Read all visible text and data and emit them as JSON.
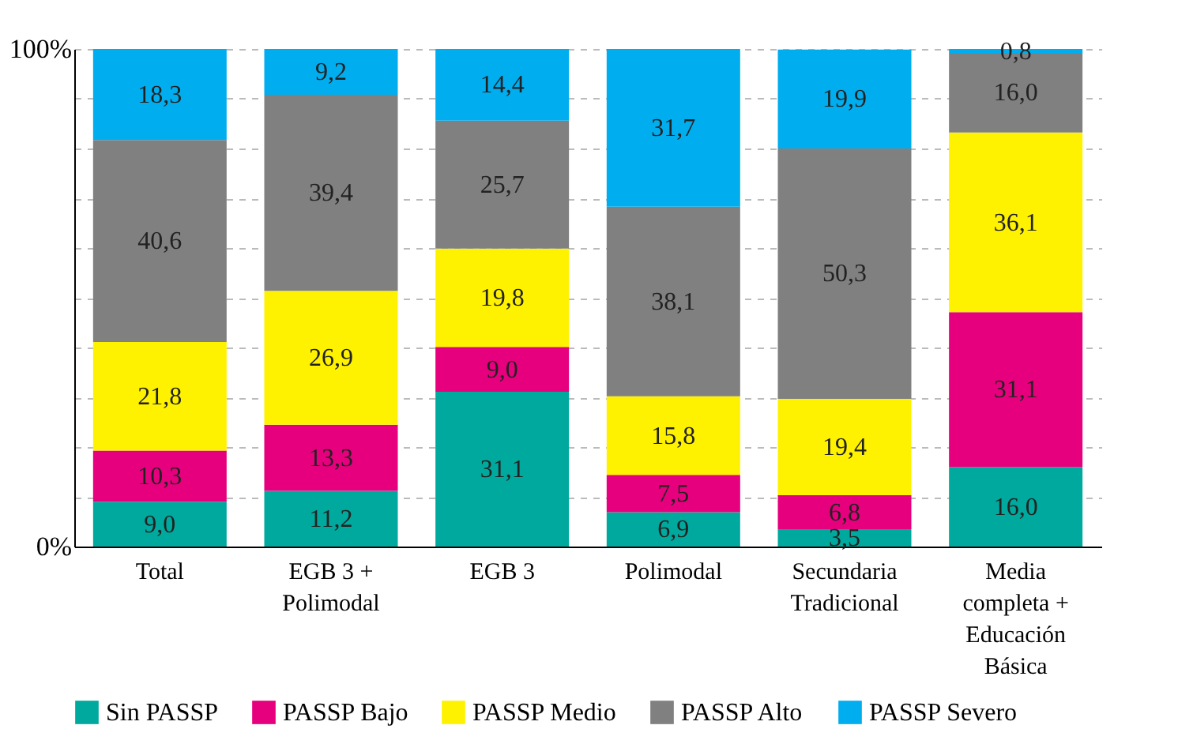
{
  "chart_data": {
    "type": "bar",
    "stacked": true,
    "categories": [
      "Total",
      "EGB 3 +\nPolimodal",
      "EGB 3",
      "Polimodal",
      "Secundaria\nTradicional",
      "Media\ncompleta +\nEducación\nBásica"
    ],
    "ylim": [
      0,
      100
    ],
    "yticks": [
      {
        "value": 0,
        "label": "0%"
      },
      {
        "value": 10,
        "label": null
      },
      {
        "value": 20,
        "label": null
      },
      {
        "value": 30,
        "label": null
      },
      {
        "value": 40,
        "label": null
      },
      {
        "value": 50,
        "label": null
      },
      {
        "value": 60,
        "label": null
      },
      {
        "value": 70,
        "label": null
      },
      {
        "value": 80,
        "label": null
      },
      {
        "value": 90,
        "label": null
      },
      {
        "value": 100,
        "label": "100%"
      }
    ],
    "grid": "y",
    "line_style": "dashed",
    "legend": "bottom",
    "series": [
      {
        "name": "Sin PASSP",
        "color": "#00a99d",
        "values": [
          9.0,
          11.2,
          31.1,
          6.9,
          3.5,
          16.0
        ],
        "value_labels": [
          "9,0",
          "11,2",
          "31,1",
          "6,9",
          "3,5",
          "16,0"
        ]
      },
      {
        "name": "PASSP Bajo",
        "color": "#e6007e",
        "values": [
          10.3,
          13.3,
          9.0,
          7.5,
          6.8,
          31.1
        ],
        "value_labels": [
          "10,3",
          "13,3",
          "9,0",
          "7,5",
          "6,8",
          "31,1"
        ]
      },
      {
        "name": "PASSP Medio",
        "color": "#fff200",
        "values": [
          21.8,
          26.9,
          19.8,
          15.8,
          19.4,
          36.1
        ],
        "value_labels": [
          "21,8",
          "26,9",
          "19,8",
          "15,8",
          "19,4",
          "36,1"
        ]
      },
      {
        "name": "PASSP Alto",
        "color": "#808080",
        "values": [
          40.6,
          39.4,
          25.7,
          38.1,
          50.3,
          16.0
        ],
        "value_labels": [
          "40,6",
          "39,4",
          "25,7",
          "38,1",
          "50,3",
          "16,0"
        ]
      },
      {
        "name": "PASSP Severo",
        "color": "#00aeef",
        "values": [
          18.3,
          9.2,
          14.4,
          31.7,
          19.9,
          0.8
        ],
        "value_labels": [
          "18,3",
          "9,2",
          "14,4",
          "31,7",
          "19,9",
          "0,8"
        ]
      }
    ]
  }
}
